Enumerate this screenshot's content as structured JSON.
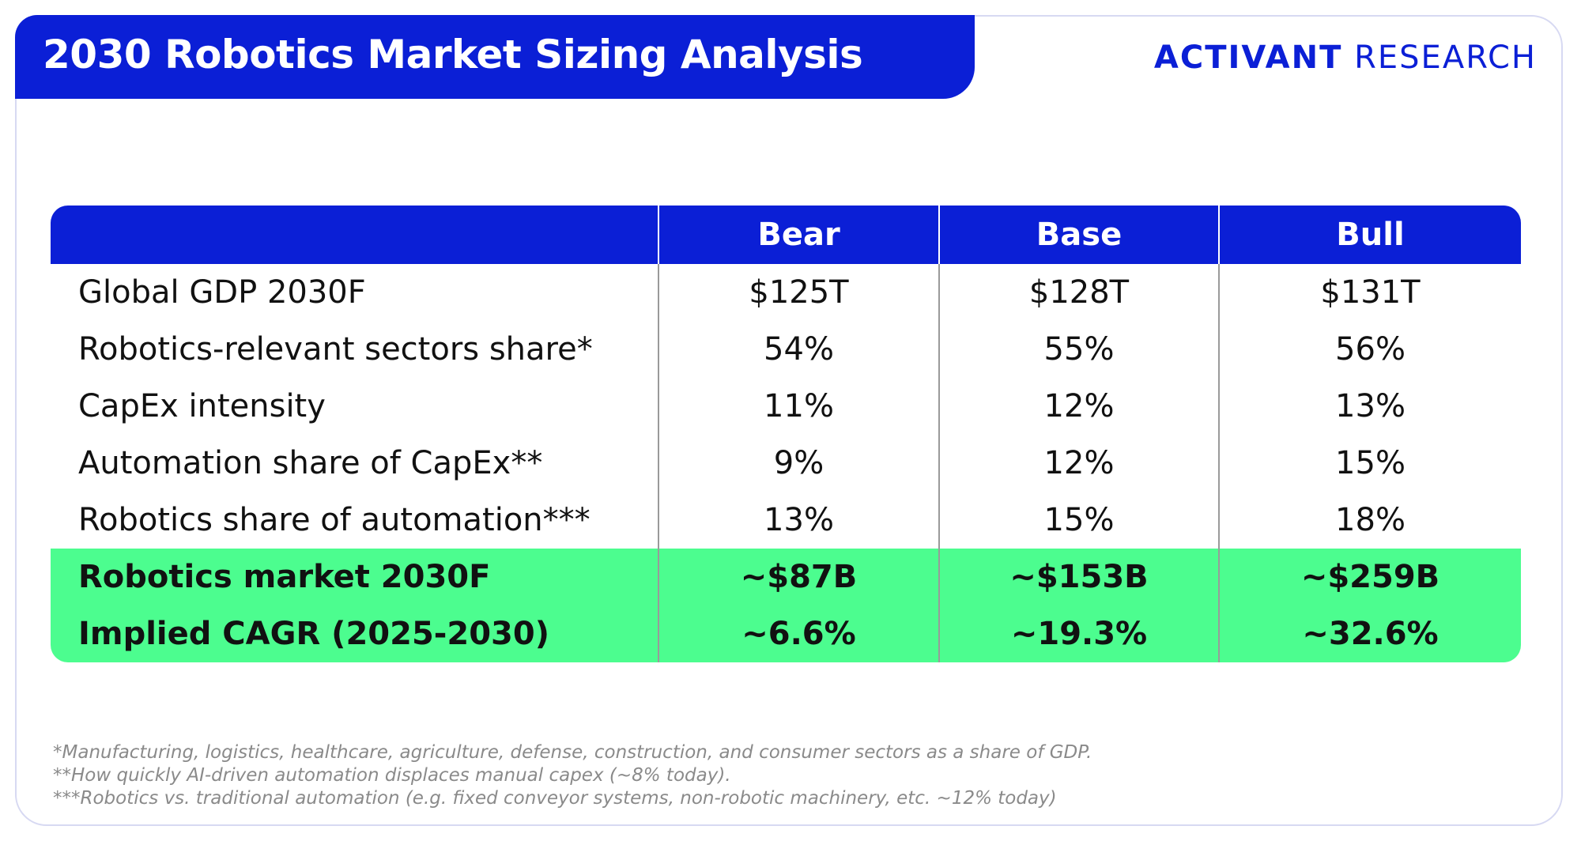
{
  "header": {
    "title": "2030 Robotics Market Sizing Analysis",
    "brand": [
      "ACTIVANT",
      "RESEARCH"
    ]
  },
  "table": {
    "columns": [
      "Bear",
      "Base",
      "Bull"
    ],
    "rows": [
      [
        "Global GDP 2030F",
        "$125T",
        "$128T",
        "$131T"
      ],
      [
        "Robotics-relevant sectors share*",
        "54%",
        "55%",
        "56%"
      ],
      [
        "CapEx intensity",
        "11%",
        "12%",
        "13%"
      ],
      [
        "Automation share of CapEx**",
        "9%",
        "12%",
        "15%"
      ],
      [
        "Robotics share of automation***",
        "13%",
        "15%",
        "18%"
      ]
    ],
    "summary_rows": [
      [
        "Robotics market 2030F",
        "~$87B",
        "~$153B",
        "~$259B"
      ],
      [
        "Implied CAGR (2025-2030)",
        "~6.6%",
        "~19.3%",
        "~32.6%"
      ]
    ]
  },
  "footnotes": [
    "*Manufacturing, logistics, healthcare, agriculture, defense, construction, and consumer sectors as a share of GDP.",
    "**How quickly AI-driven automation displaces manual capex (~8% today).",
    "***Robotics vs. traditional automation (e.g. fixed conveyor systems, non-robotic machinery, etc. ~12% today)"
  ]
}
